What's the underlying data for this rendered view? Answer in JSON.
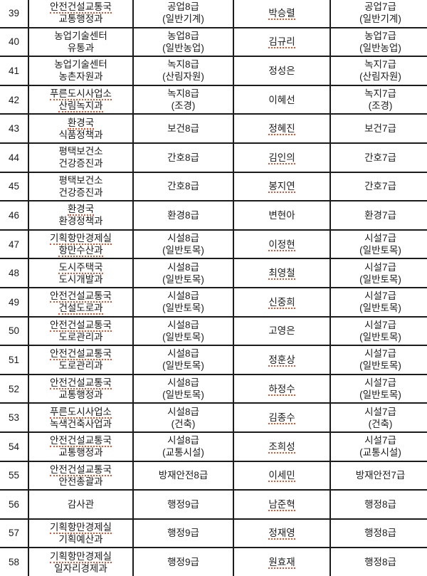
{
  "colors": {
    "background": "#ffffff",
    "table_border": "#1b1b1b",
    "text": "#1a1a1a",
    "spellcheck_underline": "#e8502a"
  },
  "table": {
    "rows": [
      {
        "no": "39",
        "department_lines": [
          {
            "text": "안전건설교통국",
            "misspelled": true
          },
          {
            "text": "교통행정과",
            "misspelled": false
          }
        ],
        "grade_from_lines": [
          {
            "text": "공업8급",
            "misspelled": false
          },
          {
            "text": "(일반기계)",
            "misspelled": false
          }
        ],
        "name": {
          "text": "박승렬",
          "misspelled": true
        },
        "grade_to_lines": [
          {
            "text": "공업7급",
            "misspelled": false
          },
          {
            "text": "(일반기계)",
            "misspelled": false
          }
        ]
      },
      {
        "no": "40",
        "department_lines": [
          {
            "text": "농업기술센터",
            "misspelled": false
          },
          {
            "text": "유통과",
            "misspelled": false
          }
        ],
        "grade_from_lines": [
          {
            "text": "농업8급",
            "misspelled": false
          },
          {
            "text": "(일반농업)",
            "misspelled": false
          }
        ],
        "name": {
          "text": "김규리",
          "misspelled": true
        },
        "grade_to_lines": [
          {
            "text": "농업7급",
            "misspelled": false
          },
          {
            "text": "(일반농업)",
            "misspelled": false
          }
        ]
      },
      {
        "no": "41",
        "department_lines": [
          {
            "text": "농업기술센터",
            "misspelled": false
          },
          {
            "text": "농촌자원과",
            "misspelled": false
          }
        ],
        "grade_from_lines": [
          {
            "text": "녹지8급",
            "misspelled": false
          },
          {
            "text": "(산림자원)",
            "misspelled": false
          }
        ],
        "name": {
          "text": "정성은",
          "misspelled": false
        },
        "grade_to_lines": [
          {
            "text": "녹지7급",
            "misspelled": false
          },
          {
            "text": "(산림자원)",
            "misspelled": false
          }
        ]
      },
      {
        "no": "42",
        "department_lines": [
          {
            "text": "푸른도시사업소",
            "misspelled": true
          },
          {
            "text": "산림녹지과",
            "misspelled": true
          }
        ],
        "grade_from_lines": [
          {
            "text": "녹지8급",
            "misspelled": false
          },
          {
            "text": "(조경)",
            "misspelled": false
          }
        ],
        "name": {
          "text": "이혜선",
          "misspelled": false
        },
        "grade_to_lines": [
          {
            "text": "녹지7급",
            "misspelled": false
          },
          {
            "text": "(조경)",
            "misspelled": false
          }
        ]
      },
      {
        "no": "43",
        "department_lines": [
          {
            "text": "환경국",
            "misspelled": true
          },
          {
            "text": "식품정책과",
            "misspelled": false
          }
        ],
        "grade_from_lines": [
          {
            "text": "보건8급",
            "misspelled": false
          }
        ],
        "name": {
          "text": "정혜진",
          "misspelled": true
        },
        "grade_to_lines": [
          {
            "text": "보건7급",
            "misspelled": false
          }
        ]
      },
      {
        "no": "44",
        "department_lines": [
          {
            "text": "평택보건소",
            "misspelled": false
          },
          {
            "text": "건강증진과",
            "misspelled": false
          }
        ],
        "grade_from_lines": [
          {
            "text": "간호8급",
            "misspelled": false
          }
        ],
        "name": {
          "text": "김인의",
          "misspelled": true
        },
        "grade_to_lines": [
          {
            "text": "간호7급",
            "misspelled": false
          }
        ]
      },
      {
        "no": "45",
        "department_lines": [
          {
            "text": "평택보건소",
            "misspelled": false
          },
          {
            "text": "건강증진과",
            "misspelled": false
          }
        ],
        "grade_from_lines": [
          {
            "text": "간호8급",
            "misspelled": false
          }
        ],
        "name": {
          "text": "봉지연",
          "misspelled": true
        },
        "grade_to_lines": [
          {
            "text": "간호7급",
            "misspelled": false
          }
        ]
      },
      {
        "no": "46",
        "department_lines": [
          {
            "text": "환경국",
            "misspelled": true
          },
          {
            "text": "환경정책과",
            "misspelled": false
          }
        ],
        "grade_from_lines": [
          {
            "text": "환경8급",
            "misspelled": false
          }
        ],
        "name": {
          "text": "변현아",
          "misspelled": false
        },
        "grade_to_lines": [
          {
            "text": "환경7급",
            "misspelled": false
          }
        ]
      },
      {
        "no": "47",
        "department_lines": [
          {
            "text": "기획항만경제실",
            "misspelled": true
          },
          {
            "text": "항만수산과",
            "misspelled": true
          }
        ],
        "grade_from_lines": [
          {
            "text": "시설8급",
            "misspelled": false
          },
          {
            "text": "(일반토목)",
            "misspelled": false
          }
        ],
        "name": {
          "text": "이정현",
          "misspelled": true
        },
        "grade_to_lines": [
          {
            "text": "시설7급",
            "misspelled": false
          },
          {
            "text": "(일반토목)",
            "misspelled": false
          }
        ]
      },
      {
        "no": "48",
        "department_lines": [
          {
            "text": "도시주택국",
            "misspelled": true
          },
          {
            "text": "도시개발과",
            "misspelled": false
          }
        ],
        "grade_from_lines": [
          {
            "text": "시설8급",
            "misspelled": false
          },
          {
            "text": "(일반토목)",
            "misspelled": false
          }
        ],
        "name": {
          "text": "최영철",
          "misspelled": true
        },
        "grade_to_lines": [
          {
            "text": "시설7급",
            "misspelled": false
          },
          {
            "text": "(일반토목)",
            "misspelled": false
          }
        ]
      },
      {
        "no": "49",
        "department_lines": [
          {
            "text": "안전건설교통국",
            "misspelled": true
          },
          {
            "text": "건설도로과",
            "misspelled": true
          }
        ],
        "grade_from_lines": [
          {
            "text": "시설8급",
            "misspelled": false
          },
          {
            "text": "(일반토목)",
            "misspelled": false
          }
        ],
        "name": {
          "text": "신중희",
          "misspelled": true
        },
        "grade_to_lines": [
          {
            "text": "시설7급",
            "misspelled": false
          },
          {
            "text": "(일반토목)",
            "misspelled": false
          }
        ]
      },
      {
        "no": "50",
        "department_lines": [
          {
            "text": "안전건설교통국",
            "misspelled": true
          },
          {
            "text": "도로관리과",
            "misspelled": false
          }
        ],
        "grade_from_lines": [
          {
            "text": "시설8급",
            "misspelled": false
          },
          {
            "text": "(일반토목)",
            "misspelled": false
          }
        ],
        "name": {
          "text": "고영은",
          "misspelled": false
        },
        "grade_to_lines": [
          {
            "text": "시설7급",
            "misspelled": false
          },
          {
            "text": "(일반토목)",
            "misspelled": false
          }
        ]
      },
      {
        "no": "51",
        "department_lines": [
          {
            "text": "안전건설교통국",
            "misspelled": true
          },
          {
            "text": "도로관리과",
            "misspelled": false
          }
        ],
        "grade_from_lines": [
          {
            "text": "시설8급",
            "misspelled": false
          },
          {
            "text": "(일반토목)",
            "misspelled": false
          }
        ],
        "name": {
          "text": "정훈상",
          "misspelled": true
        },
        "grade_to_lines": [
          {
            "text": "시설7급",
            "misspelled": false
          },
          {
            "text": "(일반토목)",
            "misspelled": false
          }
        ]
      },
      {
        "no": "52",
        "department_lines": [
          {
            "text": "안전건설교통국",
            "misspelled": true
          },
          {
            "text": "교통행정과",
            "misspelled": false
          }
        ],
        "grade_from_lines": [
          {
            "text": "시설8급",
            "misspelled": false
          },
          {
            "text": "(일반토목)",
            "misspelled": false
          }
        ],
        "name": {
          "text": "하정수",
          "misspelled": true
        },
        "grade_to_lines": [
          {
            "text": "시설7급",
            "misspelled": false
          },
          {
            "text": "(일반토목)",
            "misspelled": false
          }
        ]
      },
      {
        "no": "53",
        "department_lines": [
          {
            "text": "푸른도시사업소",
            "misspelled": true
          },
          {
            "text": "녹색건축사업과",
            "misspelled": false
          }
        ],
        "grade_from_lines": [
          {
            "text": "시설8급",
            "misspelled": false
          },
          {
            "text": "(건축)",
            "misspelled": false
          }
        ],
        "name": {
          "text": "김종수",
          "misspelled": true
        },
        "grade_to_lines": [
          {
            "text": "시설7급",
            "misspelled": false
          },
          {
            "text": "(건축)",
            "misspelled": false
          }
        ]
      },
      {
        "no": "54",
        "department_lines": [
          {
            "text": "안전건설교통국",
            "misspelled": true
          },
          {
            "text": "교통행정과",
            "misspelled": false
          }
        ],
        "grade_from_lines": [
          {
            "text": "시설8급",
            "misspelled": false
          },
          {
            "text": "(교통시설)",
            "misspelled": false
          }
        ],
        "name": {
          "text": "조희성",
          "misspelled": true
        },
        "grade_to_lines": [
          {
            "text": "시설7급",
            "misspelled": false
          },
          {
            "text": "(교통시설)",
            "misspelled": false
          }
        ]
      },
      {
        "no": "55",
        "department_lines": [
          {
            "text": "안전건설교통국",
            "misspelled": true
          },
          {
            "text": "안전총괄과",
            "misspelled": false
          }
        ],
        "grade_from_lines": [
          {
            "text": "방재안전8급",
            "misspelled": false
          }
        ],
        "name": {
          "text": "이세민",
          "misspelled": true
        },
        "grade_to_lines": [
          {
            "text": "방재안전7급",
            "misspelled": false
          }
        ]
      },
      {
        "no": "56",
        "department_lines": [
          {
            "text": "감사관",
            "misspelled": false
          }
        ],
        "grade_from_lines": [
          {
            "text": "행정9급",
            "misspelled": false
          }
        ],
        "name": {
          "text": "남준혁",
          "misspelled": true
        },
        "grade_to_lines": [
          {
            "text": "행정8급",
            "misspelled": false
          }
        ]
      },
      {
        "no": "57",
        "department_lines": [
          {
            "text": "기획항만경제실",
            "misspelled": true
          },
          {
            "text": "기획예산과",
            "misspelled": false
          }
        ],
        "grade_from_lines": [
          {
            "text": "행정9급",
            "misspelled": false
          }
        ],
        "name": {
          "text": "정재영",
          "misspelled": true
        },
        "grade_to_lines": [
          {
            "text": "행정8급",
            "misspelled": false
          }
        ]
      },
      {
        "no": "58",
        "department_lines": [
          {
            "text": "기획항만경제실",
            "misspelled": true
          },
          {
            "text": "일자리경제과",
            "misspelled": false
          }
        ],
        "grade_from_lines": [
          {
            "text": "행정9급",
            "misspelled": false
          }
        ],
        "name": {
          "text": "원효재",
          "misspelled": true
        },
        "grade_to_lines": [
          {
            "text": "행정8급",
            "misspelled": false
          }
        ]
      }
    ]
  }
}
